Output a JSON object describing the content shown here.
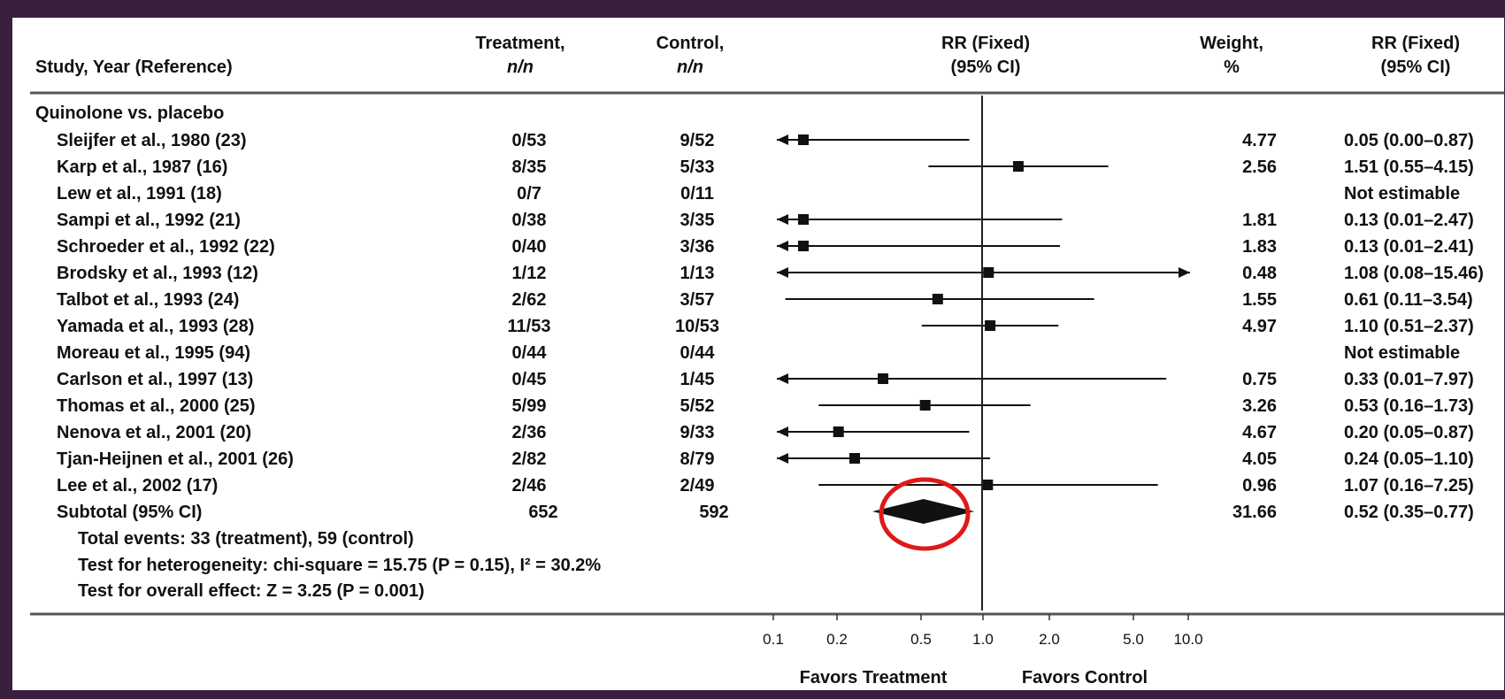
{
  "headers": {
    "study": "Study, Year (Reference)",
    "treatment_1": "Treatment,",
    "treatment_2": "n/n",
    "control_1": "Control,",
    "control_2": "n/n",
    "rr_plot_1": "RR (Fixed)",
    "rr_plot_2": "(95% CI)",
    "weight_1": "Weight,",
    "weight_2": "%",
    "rr_text_1": "RR (Fixed)",
    "rr_text_2": "(95% CI)"
  },
  "group_label": "Quinolone vs. placebo",
  "footnotes": [
    "Total events: 33 (treatment), 59 (control)",
    "Test for heterogeneity: chi-square = 15.75 (P = 0.15), I² = 30.2%",
    "Test for overall effect: Z = 3.25 (P = 0.001)"
  ],
  "favors": {
    "left": "Favors Treatment",
    "right": "Favors Control"
  },
  "colors": {
    "background": "#ffffff",
    "frame": "#3a1f3f",
    "highlight": "#e01818",
    "ink": "#111111"
  },
  "chart_data": {
    "type": "forest",
    "scale": "log",
    "xlim": [
      0.1,
      10.0
    ],
    "x_ticks": [
      "0.1",
      "0.2",
      "0.5",
      "1.0",
      "2.0",
      "5.0",
      "10.0"
    ],
    "x_tick_values": [
      0.1,
      0.2,
      0.5,
      1.0,
      2.0,
      5.0,
      10.0
    ],
    "reference_line": 1.0,
    "studies": [
      {
        "label": "Sleijfer et al., 1980 (23)",
        "treatment": "0/53",
        "control": "9/52",
        "weight": "4.77",
        "rr_text": "0.05 (0.00–0.87)",
        "rr": 0.05,
        "lo": 0.0,
        "hi": 0.87
      },
      {
        "label": "Karp et al., 1987 (16)",
        "treatment": "8/35",
        "control": "5/33",
        "weight": "2.56",
        "rr_text": "1.51 (0.55–4.15)",
        "rr": 1.51,
        "lo": 0.55,
        "hi": 4.15
      },
      {
        "label": "Lew et al., 1991 (18)",
        "treatment": "0/7",
        "control": "0/11",
        "weight": "",
        "rr_text": "Not estimable",
        "rr": null,
        "lo": null,
        "hi": null
      },
      {
        "label": "Sampi et al., 1992 (21)",
        "treatment": "0/38",
        "control": "3/35",
        "weight": "1.81",
        "rr_text": "0.13 (0.01–2.47)",
        "rr": 0.13,
        "lo": 0.01,
        "hi": 2.47
      },
      {
        "label": "Schroeder et al., 1992 (22)",
        "treatment": "0/40",
        "control": "3/36",
        "weight": "1.83",
        "rr_text": "0.13 (0.01–2.41)",
        "rr": 0.13,
        "lo": 0.01,
        "hi": 2.41
      },
      {
        "label": "Brodsky et al., 1993 (12)",
        "treatment": "1/12",
        "control": "1/13",
        "weight": "0.48",
        "rr_text": "1.08 (0.08–15.46)",
        "rr": 1.08,
        "lo": 0.08,
        "hi": 15.46
      },
      {
        "label": "Talbot et al., 1993 (24)",
        "treatment": "2/62",
        "control": "3/57",
        "weight": "1.55",
        "rr_text": "0.61 (0.11–3.54)",
        "rr": 0.61,
        "lo": 0.11,
        "hi": 3.54
      },
      {
        "label": "Yamada et al., 1993 (28)",
        "treatment": "11/53",
        "control": "10/53",
        "weight": "4.97",
        "rr_text": "1.10 (0.51–2.37)",
        "rr": 1.1,
        "lo": 0.51,
        "hi": 2.37
      },
      {
        "label": "Moreau et al., 1995 (94)",
        "treatment": "0/44",
        "control": "0/44",
        "weight": "",
        "rr_text": "Not estimable",
        "rr": null,
        "lo": null,
        "hi": null
      },
      {
        "label": "Carlson et al., 1997 (13)",
        "treatment": "0/45",
        "control": "1/45",
        "weight": "0.75",
        "rr_text": "0.33 (0.01–7.97)",
        "rr": 0.33,
        "lo": 0.01,
        "hi": 7.97
      },
      {
        "label": "Thomas et al., 2000 (25)",
        "treatment": "5/99",
        "control": "5/52",
        "weight": "3.26",
        "rr_text": "0.53 (0.16–1.73)",
        "rr": 0.53,
        "lo": 0.16,
        "hi": 1.73
      },
      {
        "label": "Nenova et al., 2001 (20)",
        "treatment": "2/36",
        "control": "9/33",
        "weight": "4.67",
        "rr_text": "0.20 (0.05–0.87)",
        "rr": 0.2,
        "lo": 0.05,
        "hi": 0.87
      },
      {
        "label": "Tjan-Heijnen et al., 2001 (26)",
        "treatment": "2/82",
        "control": "8/79",
        "weight": "4.05",
        "rr_text": "0.24 (0.05–1.10)",
        "rr": 0.24,
        "lo": 0.05,
        "hi": 1.1
      },
      {
        "label": "Lee et al., 2002 (17)",
        "treatment": "2/46",
        "control": "2/49",
        "weight": "0.96",
        "rr_text": "1.07 (0.16–7.25)",
        "rr": 1.07,
        "lo": 0.16,
        "hi": 7.25
      }
    ],
    "subtotal": {
      "label": "Subtotal (95% CI)",
      "treatment": "652",
      "control": "592",
      "weight": "31.66",
      "rr_text": "0.52 (0.35–0.77)",
      "rr": 0.52,
      "lo": 0.35,
      "hi": 0.77
    }
  }
}
